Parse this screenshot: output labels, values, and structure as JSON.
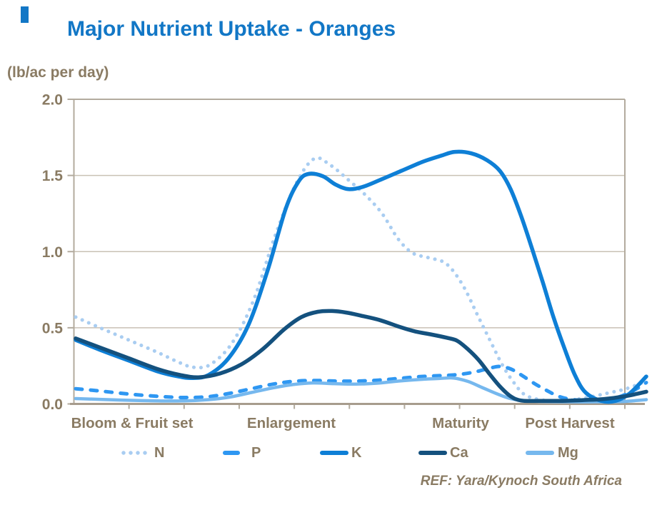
{
  "title": "Major Nutrient Uptake - Oranges",
  "unit_label": "(lb/ac per day)",
  "ref_note": "REF: Yara/Kynoch South Africa",
  "colors": {
    "title_accent": "#1277c6",
    "axis_text": "#8a7b63",
    "gridline": "#c9c1b4",
    "plot_border": "#b3ab9e",
    "bottom_axis": "#a79c8d"
  },
  "chart_data": {
    "type": "line",
    "title": "Major Nutrient Uptake - Oranges",
    "ylabel": "(lb/ac per day)",
    "xlabel": "",
    "ylim": [
      0.0,
      2.0
    ],
    "yticks": [
      "0.0",
      "0.5",
      "1.0",
      "1.5",
      "2.0"
    ],
    "ytick_values": [
      0.0,
      0.5,
      1.0,
      1.5,
      2.0
    ],
    "grid": true,
    "legend_position": "bottom",
    "categories": [
      "Bloom & Fruit set",
      "Enlargement",
      "Maturity",
      "Post Harvest"
    ],
    "series": [
      {
        "name": "N",
        "style": "dotted",
        "color": "#a9cdf1",
        "points": [
          [
            106,
            0.57
          ],
          [
            140,
            0.5
          ],
          [
            180,
            0.42
          ],
          [
            220,
            0.34
          ],
          [
            252,
            0.27
          ],
          [
            272,
            0.24
          ],
          [
            295,
            0.26
          ],
          [
            325,
            0.4
          ],
          [
            355,
            0.68
          ],
          [
            385,
            1.1
          ],
          [
            415,
            1.45
          ],
          [
            440,
            1.61
          ],
          [
            462,
            1.57
          ],
          [
            488,
            1.47
          ],
          [
            512,
            1.37
          ],
          [
            535,
            1.25
          ],
          [
            558,
            1.08
          ],
          [
            578,
            0.99
          ],
          [
            600,
            0.96
          ],
          [
            625,
            0.92
          ],
          [
            648,
            0.78
          ],
          [
            670,
            0.57
          ],
          [
            688,
            0.4
          ],
          [
            703,
            0.26
          ],
          [
            718,
            0.15
          ],
          [
            735,
            0.06
          ],
          [
            760,
            0.025
          ],
          [
            790,
            0.02
          ],
          [
            820,
            0.04
          ],
          [
            850,
            0.07
          ],
          [
            877,
            0.1
          ],
          [
            905,
            0.15
          ]
        ]
      },
      {
        "name": "P",
        "style": "dashed",
        "color": "#2e97f2",
        "points": [
          [
            106,
            0.1
          ],
          [
            140,
            0.085
          ],
          [
            180,
            0.065
          ],
          [
            220,
            0.05
          ],
          [
            258,
            0.042
          ],
          [
            292,
            0.048
          ],
          [
            322,
            0.07
          ],
          [
            352,
            0.1
          ],
          [
            382,
            0.13
          ],
          [
            410,
            0.148
          ],
          [
            440,
            0.154
          ],
          [
            470,
            0.15
          ],
          [
            500,
            0.15
          ],
          [
            530,
            0.156
          ],
          [
            560,
            0.168
          ],
          [
            590,
            0.18
          ],
          [
            618,
            0.186
          ],
          [
            642,
            0.193
          ],
          [
            665,
            0.21
          ],
          [
            686,
            0.235
          ],
          [
            700,
            0.246
          ],
          [
            715,
            0.23
          ],
          [
            730,
            0.19
          ],
          [
            748,
            0.135
          ],
          [
            765,
            0.09
          ],
          [
            782,
            0.05
          ],
          [
            800,
            0.03
          ],
          [
            825,
            0.02
          ],
          [
            850,
            0.025
          ],
          [
            872,
            0.055
          ],
          [
            890,
            0.095
          ],
          [
            905,
            0.14
          ]
        ]
      },
      {
        "name": "K",
        "style": "solid",
        "color": "#0e7fd6",
        "points": [
          [
            106,
            0.42
          ],
          [
            140,
            0.355
          ],
          [
            180,
            0.285
          ],
          [
            220,
            0.215
          ],
          [
            250,
            0.18
          ],
          [
            270,
            0.17
          ],
          [
            292,
            0.19
          ],
          [
            320,
            0.3
          ],
          [
            348,
            0.52
          ],
          [
            375,
            0.88
          ],
          [
            400,
            1.28
          ],
          [
            418,
            1.46
          ],
          [
            432,
            1.51
          ],
          [
            452,
            1.495
          ],
          [
            470,
            1.44
          ],
          [
            488,
            1.41
          ],
          [
            508,
            1.425
          ],
          [
            532,
            1.47
          ],
          [
            562,
            1.53
          ],
          [
            592,
            1.59
          ],
          [
            618,
            1.63
          ],
          [
            637,
            1.655
          ],
          [
            660,
            1.645
          ],
          [
            682,
            1.6
          ],
          [
            700,
            1.53
          ],
          [
            715,
            1.41
          ],
          [
            730,
            1.23
          ],
          [
            745,
            1.02
          ],
          [
            760,
            0.8
          ],
          [
            775,
            0.57
          ],
          [
            790,
            0.37
          ],
          [
            805,
            0.19
          ],
          [
            820,
            0.075
          ],
          [
            842,
            0.02
          ],
          [
            862,
            0.02
          ],
          [
            882,
            0.07
          ],
          [
            905,
            0.18
          ]
        ]
      },
      {
        "name": "Ca",
        "style": "solid",
        "color": "#14517e",
        "points": [
          [
            106,
            0.43
          ],
          [
            140,
            0.37
          ],
          [
            180,
            0.3
          ],
          [
            220,
            0.23
          ],
          [
            252,
            0.19
          ],
          [
            278,
            0.175
          ],
          [
            308,
            0.2
          ],
          [
            338,
            0.26
          ],
          [
            368,
            0.36
          ],
          [
            398,
            0.49
          ],
          [
            422,
            0.57
          ],
          [
            445,
            0.605
          ],
          [
            465,
            0.61
          ],
          [
            485,
            0.6
          ],
          [
            505,
            0.58
          ],
          [
            532,
            0.55
          ],
          [
            560,
            0.505
          ],
          [
            582,
            0.475
          ],
          [
            605,
            0.455
          ],
          [
            625,
            0.435
          ],
          [
            640,
            0.415
          ],
          [
            655,
            0.36
          ],
          [
            670,
            0.29
          ],
          [
            685,
            0.2
          ],
          [
            700,
            0.115
          ],
          [
            715,
            0.05
          ],
          [
            730,
            0.022
          ],
          [
            755,
            0.02
          ],
          [
            785,
            0.02
          ],
          [
            815,
            0.025
          ],
          [
            845,
            0.032
          ],
          [
            875,
            0.05
          ],
          [
            905,
            0.08
          ]
        ]
      },
      {
        "name": "Mg",
        "style": "solid",
        "color": "#76b8ee",
        "points": [
          [
            106,
            0.035
          ],
          [
            140,
            0.03
          ],
          [
            180,
            0.024
          ],
          [
            220,
            0.02
          ],
          [
            258,
            0.02
          ],
          [
            292,
            0.028
          ],
          [
            322,
            0.045
          ],
          [
            352,
            0.075
          ],
          [
            382,
            0.105
          ],
          [
            410,
            0.127
          ],
          [
            438,
            0.138
          ],
          [
            468,
            0.133
          ],
          [
            498,
            0.13
          ],
          [
            528,
            0.136
          ],
          [
            558,
            0.15
          ],
          [
            588,
            0.161
          ],
          [
            615,
            0.167
          ],
          [
            635,
            0.17
          ],
          [
            655,
            0.148
          ],
          [
            675,
            0.108
          ],
          [
            695,
            0.068
          ],
          [
            715,
            0.035
          ],
          [
            738,
            0.02
          ],
          [
            770,
            0.015
          ],
          [
            805,
            0.014
          ],
          [
            840,
            0.014
          ],
          [
            872,
            0.016
          ],
          [
            905,
            0.028
          ]
        ]
      }
    ]
  }
}
